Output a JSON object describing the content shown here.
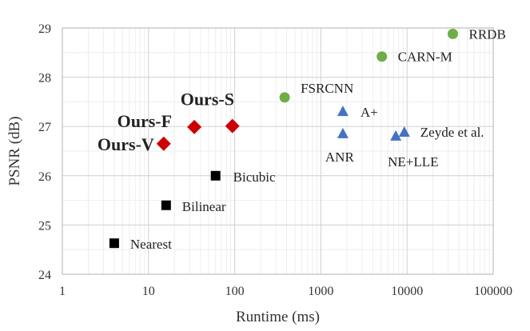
{
  "chart_data": {
    "type": "scatter",
    "xlabel": "Runtime (ms)",
    "ylabel": "PSNR (dB)",
    "x_scale": "log",
    "xlim": [
      1,
      100000
    ],
    "ylim": [
      24,
      29
    ],
    "x_ticks": [
      "1",
      "10",
      "100",
      "1000",
      "10000",
      "100000"
    ],
    "y_ticks": [
      "24",
      "25",
      "26",
      "27",
      "28",
      "29"
    ],
    "grid": true,
    "series": [
      {
        "marker": "square",
        "color": "#000000",
        "points": [
          {
            "label": "Nearest",
            "x": 4,
            "y": 24.63
          },
          {
            "label": "Bilinear",
            "x": 16,
            "y": 25.4
          },
          {
            "label": "Bicubic",
            "x": 60,
            "y": 26.0
          }
        ]
      },
      {
        "marker": "diamond",
        "color": "#cc0000",
        "bold_labels": true,
        "points": [
          {
            "label": "Ours-V",
            "x": 15,
            "y": 26.65
          },
          {
            "label": "Ours-F",
            "x": 34,
            "y": 26.99
          },
          {
            "label": "Ours-S",
            "x": 94,
            "y": 27.01
          }
        ]
      },
      {
        "marker": "circle",
        "color": "#70ad47",
        "points": [
          {
            "label": "FSRCNN",
            "x": 380,
            "y": 27.59
          },
          {
            "label": "CARN-M",
            "x": 5100,
            "y": 28.42
          },
          {
            "label": "RRDB",
            "x": 34000,
            "y": 28.88
          }
        ]
      },
      {
        "marker": "triangle",
        "color": "#4472c4",
        "points": [
          {
            "label": "A+",
            "x": 1800,
            "y": 27.31
          },
          {
            "label": "ANR",
            "x": 1800,
            "y": 26.86
          },
          {
            "label": "NE+LLE",
            "x": 7400,
            "y": 26.81
          },
          {
            "label": "Zeyde et al.",
            "x": 9300,
            "y": 26.89
          }
        ]
      }
    ]
  }
}
